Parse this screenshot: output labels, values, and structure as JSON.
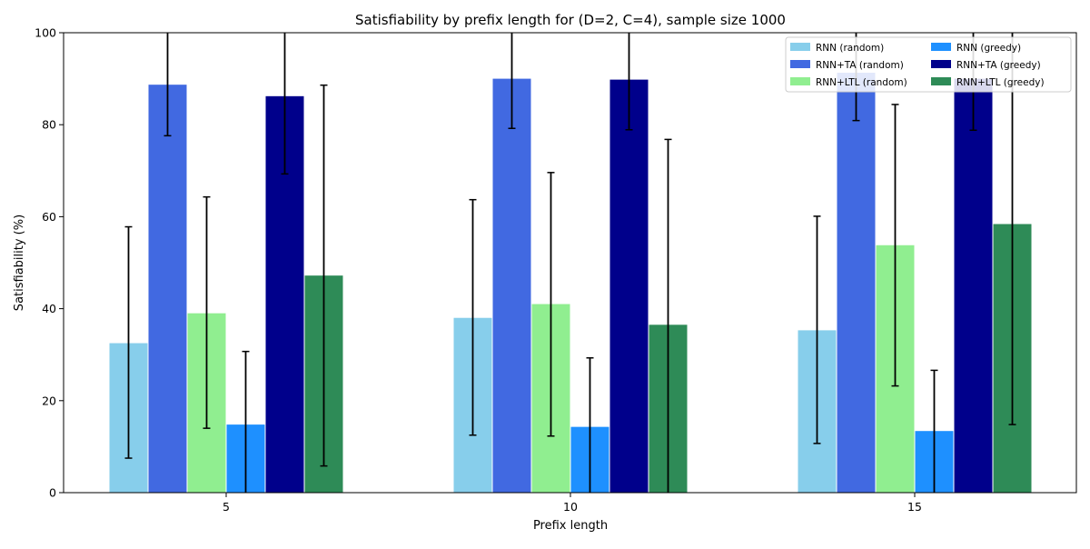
{
  "chart_data": {
    "type": "bar",
    "title": "Satisfiability by prefix length for (D=2, C=4), sample size 1000",
    "xlabel": "Prefix length",
    "ylabel": "Satisfiability (%)",
    "ylim": [
      0,
      100
    ],
    "yticks": [
      0,
      20,
      40,
      60,
      80,
      100
    ],
    "categories": [
      "5",
      "10",
      "15"
    ],
    "grid": false,
    "legend_position": "top-right",
    "series": [
      {
        "name": "RNN (random)",
        "color": "#87ceeb",
        "values": [
          32.5,
          38.0,
          35.3
        ],
        "err_low": [
          7.5,
          12.5,
          10.7
        ],
        "err_high": [
          57.8,
          63.7,
          60.1
        ]
      },
      {
        "name": "RNN+TA (random)",
        "color": "#4169e1",
        "values": [
          88.7,
          90.0,
          91.3
        ],
        "err_low": [
          77.6,
          79.2,
          80.9
        ],
        "err_high": [
          100,
          100,
          100
        ]
      },
      {
        "name": "RNN+LTL (random)",
        "color": "#90ee90",
        "values": [
          39.0,
          41.0,
          53.8
        ],
        "err_low": [
          14.0,
          12.3,
          23.2
        ],
        "err_high": [
          64.3,
          69.6,
          84.4
        ]
      },
      {
        "name": "RNN (greedy)",
        "color": "#1e90ff",
        "values": [
          14.8,
          14.3,
          13.4
        ],
        "err_low": [
          0,
          0,
          0
        ],
        "err_high": [
          30.7,
          29.3,
          26.6
        ]
      },
      {
        "name": "RNN+TA (greedy)",
        "color": "#00008b",
        "values": [
          86.2,
          89.8,
          90.0
        ],
        "err_low": [
          69.3,
          78.9,
          78.8
        ],
        "err_high": [
          100,
          100,
          100
        ]
      },
      {
        "name": "RNN+LTL (greedy)",
        "color": "#2e8b57",
        "values": [
          47.2,
          36.5,
          58.4
        ],
        "err_low": [
          5.8,
          0,
          14.8
        ],
        "err_high": [
          88.6,
          76.8,
          100
        ]
      }
    ]
  }
}
